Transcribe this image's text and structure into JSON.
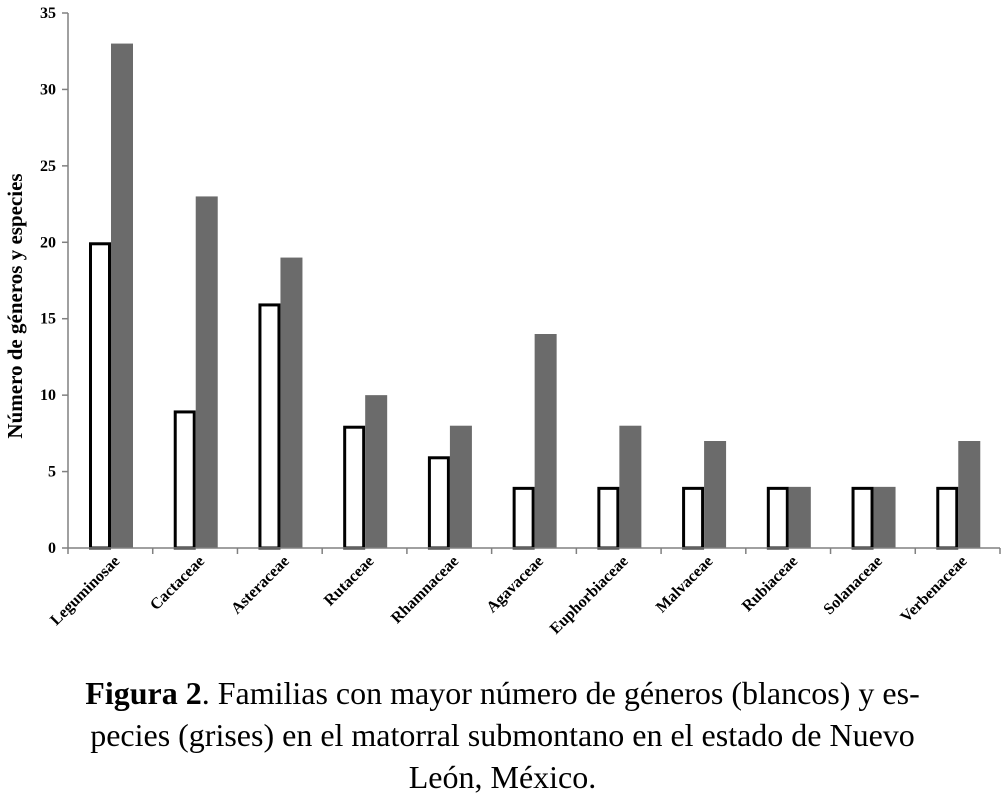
{
  "chart_data": {
    "type": "bar",
    "categories": [
      "Leguminosae",
      "Cactaceae",
      "Asteraceae",
      "Rutaceae",
      "Rhamnaceae",
      "Agavaceae",
      "Euphorbiaceae",
      "Malvaceae",
      "Rubiaceae",
      "Solanaceae",
      "Verbenaceae"
    ],
    "series": [
      {
        "values": [
          20,
          9,
          16,
          8,
          6,
          4,
          4,
          4,
          4,
          4,
          4
        ],
        "color": "#ffffff",
        "stroke": "#000000"
      },
      {
        "values": [
          33,
          23,
          19,
          10,
          8,
          14,
          8,
          7,
          4,
          4,
          7
        ],
        "color": "#6b6b6b"
      }
    ],
    "ylabel": "Número de géneros y especies",
    "xlabel": "",
    "ylim": [
      0,
      35
    ],
    "yticks": [
      0,
      5,
      10,
      15,
      20,
      25,
      30,
      35
    ],
    "grid": false,
    "legend": "none"
  },
  "caption": {
    "label": "Figura 2",
    "line1": ". Familias con mayor número de géneros (blancos) y es-",
    "line2": "pecies (grises) en el matorral submontano en el estado de Nuevo",
    "line3": "León, México."
  }
}
